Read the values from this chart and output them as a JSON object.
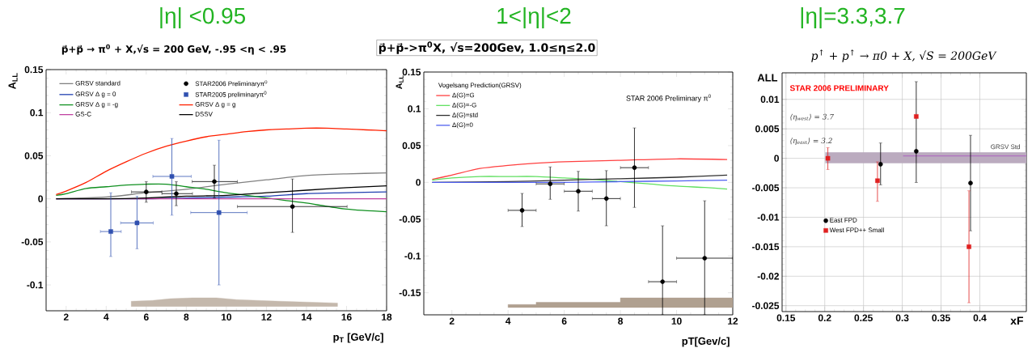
{
  "chart_data": [
    {
      "type": "line",
      "title": "|η| <0.95",
      "subtitle": "p⃗+p⃗ → π$^{0}$ + X,√s = 200 GeV, -.95 <η < .95",
      "xlabel": "p$_{T}$ [GeV/c]",
      "ylabel": "A$_{LL}$",
      "xlim": [
        1,
        18
      ],
      "ylim": [
        -0.13,
        0.15
      ],
      "xticks": [
        2,
        4,
        6,
        8,
        10,
        12,
        14,
        16,
        18
      ],
      "yticks": [
        -0.1,
        -0.05,
        0,
        0.05,
        0.1,
        0.15
      ],
      "legend": "top left",
      "series": [
        {
          "name": "GRSV standard",
          "type": "line",
          "color": "#808080",
          "x": [
            1.5,
            4,
            6,
            8,
            10,
            12,
            14,
            16,
            18
          ],
          "values": [
            0,
            0.002,
            0.007,
            0.011,
            0.017,
            0.022,
            0.027,
            0.029,
            0.03
          ]
        },
        {
          "name": "GRSV Δ g = 0",
          "type": "line",
          "color": "#2040b0",
          "x": [
            1.5,
            6,
            8,
            10,
            12,
            14,
            16,
            18
          ],
          "values": [
            0,
            0,
            0.001,
            0.002,
            0.003,
            0.006,
            0.007,
            0.008
          ]
        },
        {
          "name": "GRSV Δ g = -g",
          "type": "line",
          "color": "#109020",
          "x": [
            1.5,
            2,
            3,
            4,
            5,
            6,
            7,
            8,
            9,
            10,
            11,
            12,
            13,
            14,
            16,
            18
          ],
          "values": [
            0.004,
            0.006,
            0.012,
            0.014,
            0.016,
            0.017,
            0.017,
            0.014,
            0.011,
            0.007,
            0.004,
            0.001,
            -0.002,
            -0.005,
            -0.012,
            -0.015
          ]
        },
        {
          "name": "GRSV Δ g = g",
          "type": "line",
          "color": "#ff2000",
          "x": [
            1.5,
            2,
            3,
            4,
            5,
            6,
            7,
            8,
            9,
            10,
            11,
            12,
            13,
            14,
            15,
            16,
            17,
            18
          ],
          "values": [
            0.005,
            0.009,
            0.019,
            0.032,
            0.043,
            0.053,
            0.061,
            0.067,
            0.072,
            0.075,
            0.078,
            0.08,
            0.081,
            0.082,
            0.082,
            0.081,
            0.08,
            0.079
          ]
        },
        {
          "name": "GS-C",
          "type": "line",
          "color": "#c040a0",
          "x": [
            1.5,
            18
          ],
          "values": [
            0,
            0
          ]
        },
        {
          "name": "DSSV",
          "type": "line",
          "color": "#000000",
          "x": [
            1.5,
            4,
            6,
            8,
            10,
            12,
            14,
            16,
            18
          ],
          "values": [
            0,
            0,
            0.001,
            0.003,
            0.004,
            0.007,
            0.01,
            0.013,
            0.015
          ]
        },
        {
          "name": "STAR2006 Preliminaryπ$^{0}$",
          "type": "scatter",
          "color": "#000000",
          "marker": "circle",
          "x": [
            6.0,
            7.5,
            9.4,
            13.3
          ],
          "values": [
            0.008,
            0.006,
            0.02,
            -0.009
          ],
          "errors": [
            [
              -0.004,
              0.02
            ],
            [
              -0.008,
              0.02
            ],
            [
              0.001,
              0.039
            ],
            [
              -0.039,
              0.023
            ]
          ],
          "xerrors": [
            [
              5.26,
              6.78
            ],
            [
              6.78,
              8.31
            ],
            [
              8.29,
              10.55
            ],
            [
              10.55,
              16.03
            ]
          ]
        },
        {
          "name": "STAR2005 preliminaryπ$^{0}$",
          "type": "scatter",
          "color": "#3050b0",
          "marker": "square",
          "x": [
            4.23,
            5.54,
            7.28,
            9.63
          ],
          "values": [
            -0.038,
            -0.028,
            0.026,
            -0.016
          ],
          "errors": [
            [
              -0.067,
              0.007
            ],
            [
              -0.058,
              0.003
            ],
            [
              -0.019,
              0.07
            ],
            [
              -0.1,
              0.068
            ]
          ],
          "xerrors": [
            [
              3.71,
              4.75
            ],
            [
              4.72,
              6.35
            ],
            [
              6.33,
              8.25
            ],
            [
              8.22,
              11.04
            ]
          ]
        },
        {
          "type": "line",
          "color": "#c4b8ac",
          "x": [
            5.25,
            6.3,
            7.2,
            8.3,
            9.5,
            10.5,
            12.7,
            15.55
          ],
          "values": [
            null,
            null,
            null,
            null,
            null,
            null,
            null,
            null
          ],
          "upper": [
            -0.119,
            -0.118,
            -0.116,
            -0.115,
            -0.115,
            -0.117,
            -0.119,
            -0.121
          ],
          "lower": [
            -0.125,
            -0.125,
            -0.125,
            -0.125,
            -0.125,
            -0.125,
            -0.125,
            -0.125
          ]
        }
      ]
    },
    {
      "type": "line",
      "title": "1<|η|<2",
      "subtitle": "p⃗+p⃗->π$^{0}$X, √s=200Gev, 1.0≤η≤2.0",
      "xlabel": "pT[Gev/c]",
      "ylabel": "A$_{LL}$",
      "xlim": [
        1,
        12
      ],
      "ylim": [
        -0.18,
        0.15
      ],
      "xticks": [
        2,
        4,
        6,
        8,
        10,
        12
      ],
      "yticks": [
        -0.15,
        -0.1,
        -0.05,
        0,
        0.05,
        0.1,
        0.15
      ],
      "legend": "top left",
      "legend_title": "Vogelsang Prediction(GRSV)",
      "annotations": [
        "STAR 2006 Preliminary π$^{0}$"
      ],
      "series": [
        {
          "name": "Δ(G)=G",
          "type": "line",
          "color": "#ff4040",
          "x": [
            1.3,
            2,
            3,
            4,
            5,
            6,
            8,
            10,
            11.8
          ],
          "values": [
            0.004,
            0.01,
            0.019,
            0.023,
            0.026,
            0.028,
            0.03,
            0.032,
            0.031
          ]
        },
        {
          "name": "Δ(G)=-G",
          "type": "line",
          "color": "#60e060",
          "x": [
            1.3,
            2,
            3,
            4,
            5,
            6,
            7,
            8,
            9,
            10,
            11,
            11.8
          ],
          "values": [
            0.003,
            0.006,
            0.008,
            0.008,
            0.008,
            0.006,
            0.004,
            0.001,
            -0.002,
            -0.005,
            -0.007,
            -0.009
          ]
        },
        {
          "name": "Δ(G)=std",
          "type": "line",
          "color": "#303030",
          "x": [
            1.3,
            4,
            6,
            8,
            10,
            11.8
          ],
          "values": [
            0,
            0.001,
            0.003,
            0.005,
            0.007,
            0.01
          ]
        },
        {
          "name": "Δ(G)=0",
          "type": "line",
          "color": "#5060f0",
          "x": [
            1.3,
            4,
            6,
            8,
            10,
            11.8
          ],
          "values": [
            0,
            0,
            0,
            0.001,
            0.002,
            0.003
          ]
        },
        {
          "type": "scatter",
          "color": "#000000",
          "marker": "circle",
          "x": [
            4.5,
            5.5,
            6.5,
            7.5,
            8.5,
            9.5,
            11
          ],
          "values": [
            -0.038,
            -0.002,
            -0.012,
            -0.022,
            0.02,
            -0.135,
            -0.103
          ],
          "errors": [
            [
              -0.06,
              -0.015
            ],
            [
              -0.023,
              0.021
            ],
            [
              -0.039,
              0.015
            ],
            [
              -0.059,
              0.016
            ],
            [
              -0.034,
              0.074
            ],
            [
              -0.18,
              -0.059
            ],
            [
              -0.18,
              -0.025
            ]
          ],
          "xerrors": [
            [
              4,
              5
            ],
            [
              5,
              6
            ],
            [
              6,
              7
            ],
            [
              7,
              8
            ],
            [
              8,
              9
            ],
            [
              9,
              10
            ],
            [
              10,
              12
            ]
          ]
        },
        {
          "type": "line",
          "color": "#b0a090",
          "x": [
            4,
            5,
            5,
            8,
            8,
            12
          ],
          "values": [
            null,
            null,
            null,
            null,
            null,
            null
          ],
          "upper": [
            -0.166,
            -0.166,
            -0.163,
            -0.163,
            -0.157,
            -0.157
          ],
          "lower": [
            -0.17,
            -0.17,
            -0.17,
            -0.17,
            -0.17,
            -0.17
          ]
        }
      ]
    },
    {
      "type": "line",
      "title": "|η|=3.3,3.7",
      "subtitle": "p$^{↑}$ + p$^{↑}$ → π0 + X, √S = 200GeV",
      "xlabel": "xF",
      "ylabel": "ALL",
      "xlim": [
        0.145,
        0.46
      ],
      "ylim": [
        -0.026,
        0.0145
      ],
      "xticks": [
        0.15,
        0.2,
        0.25,
        0.3,
        0.35,
        0.4
      ],
      "yticks": [
        -0.025,
        -0.02,
        -0.015,
        -0.01,
        -0.005,
        0,
        0.005,
        0.01
      ],
      "grid": true,
      "legend": "left",
      "annotations": [
        "STAR 2006 PRELIMINARY",
        "⟨η$_{west}$⟩ = 3.7",
        "⟨η$_{east}$⟩ = 3.2"
      ],
      "series": [
        {
          "name": "GRSV Std",
          "type": "line",
          "color": "#b070c0",
          "x": [
            0.201,
            0.301,
            0.46
          ],
          "values": [
            null,
            0.0004,
            0.0004
          ],
          "lower": [
            -0.0008,
            -0.0008,
            -0.0008
          ],
          "upper": [
            0.001,
            0.001,
            0.001
          ]
        },
        {
          "name": "East FPD",
          "type": "scatter",
          "color": "#000000",
          "marker": "circle",
          "x": [
            0.272,
            0.318,
            0.388
          ],
          "values": [
            -0.001,
            0.0012,
            -0.0042
          ],
          "errors": [
            [
              -0.0045,
              0.0026
            ],
            [
              -0.0041,
              0.013
            ],
            [
              -0.0123,
              0.0039
            ]
          ]
        },
        {
          "name": "West FPD++ Small",
          "type": "scatter",
          "color": "#e02020",
          "marker": "square",
          "x": [
            0.204,
            0.268,
            0.318,
            0.386
          ],
          "values": [
            0,
            -0.0038,
            0.0071,
            -0.015
          ],
          "errors": [
            [
              -0.0019,
              0.0018
            ],
            [
              -0.0073,
              -0.0006
            ],
            null,
            [
              -0.0245,
              -0.0055
            ]
          ]
        }
      ]
    }
  ]
}
